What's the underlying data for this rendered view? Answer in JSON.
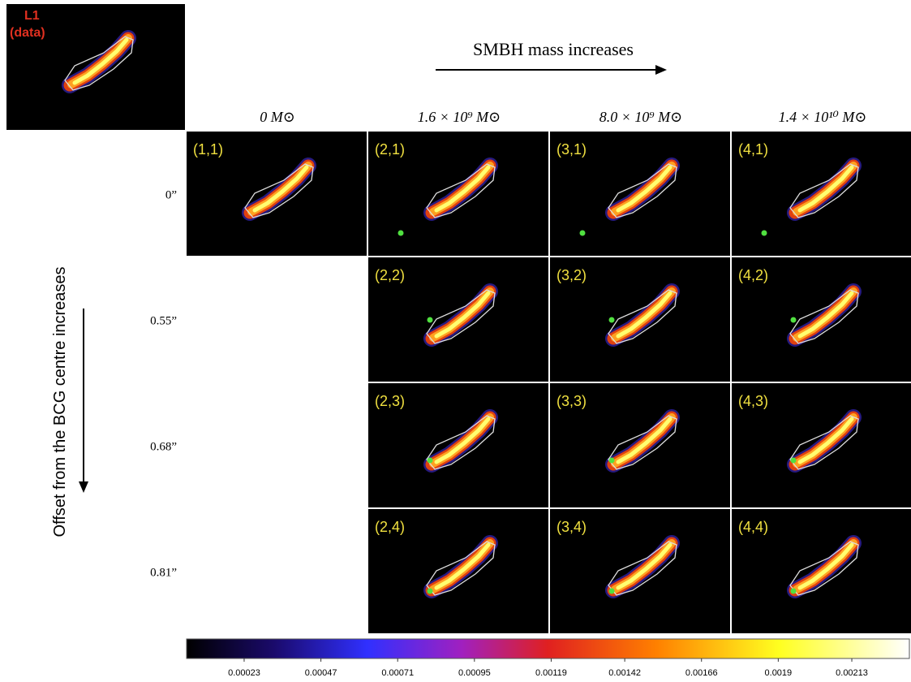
{
  "reference": {
    "label": [
      "L1",
      "(data)"
    ]
  },
  "x_arrow_label": "SMBH mass increases",
  "y_arrow_label": "Offset from the BCG centre increases",
  "column_headers": [
    "0 M⊙",
    "1.6 × 10⁹ M⊙",
    "8.0 × 10⁹ M⊙",
    "1.4 × 10¹⁰ M⊙"
  ],
  "row_labels": [
    "0”",
    "0.55”",
    "0.68”",
    "0.81”"
  ],
  "panels": [
    [
      "(1,1)"
    ],
    [
      "(2,1)",
      "(2,2)",
      "(2,3)",
      "(2,4)"
    ],
    [
      "(3,1)",
      "(3,2)",
      "(3,3)",
      "(3,4)"
    ],
    [
      "(4,1)",
      "(4,2)",
      "(4,3)",
      "(4,4)"
    ]
  ],
  "colorbar": {
    "lim": [
      5e-05,
      0.00231
    ],
    "ticks": [
      0.00023,
      0.00047,
      0.00071,
      0.00095,
      0.00119,
      0.00142,
      0.00166,
      0.0019,
      0.00213
    ]
  }
}
